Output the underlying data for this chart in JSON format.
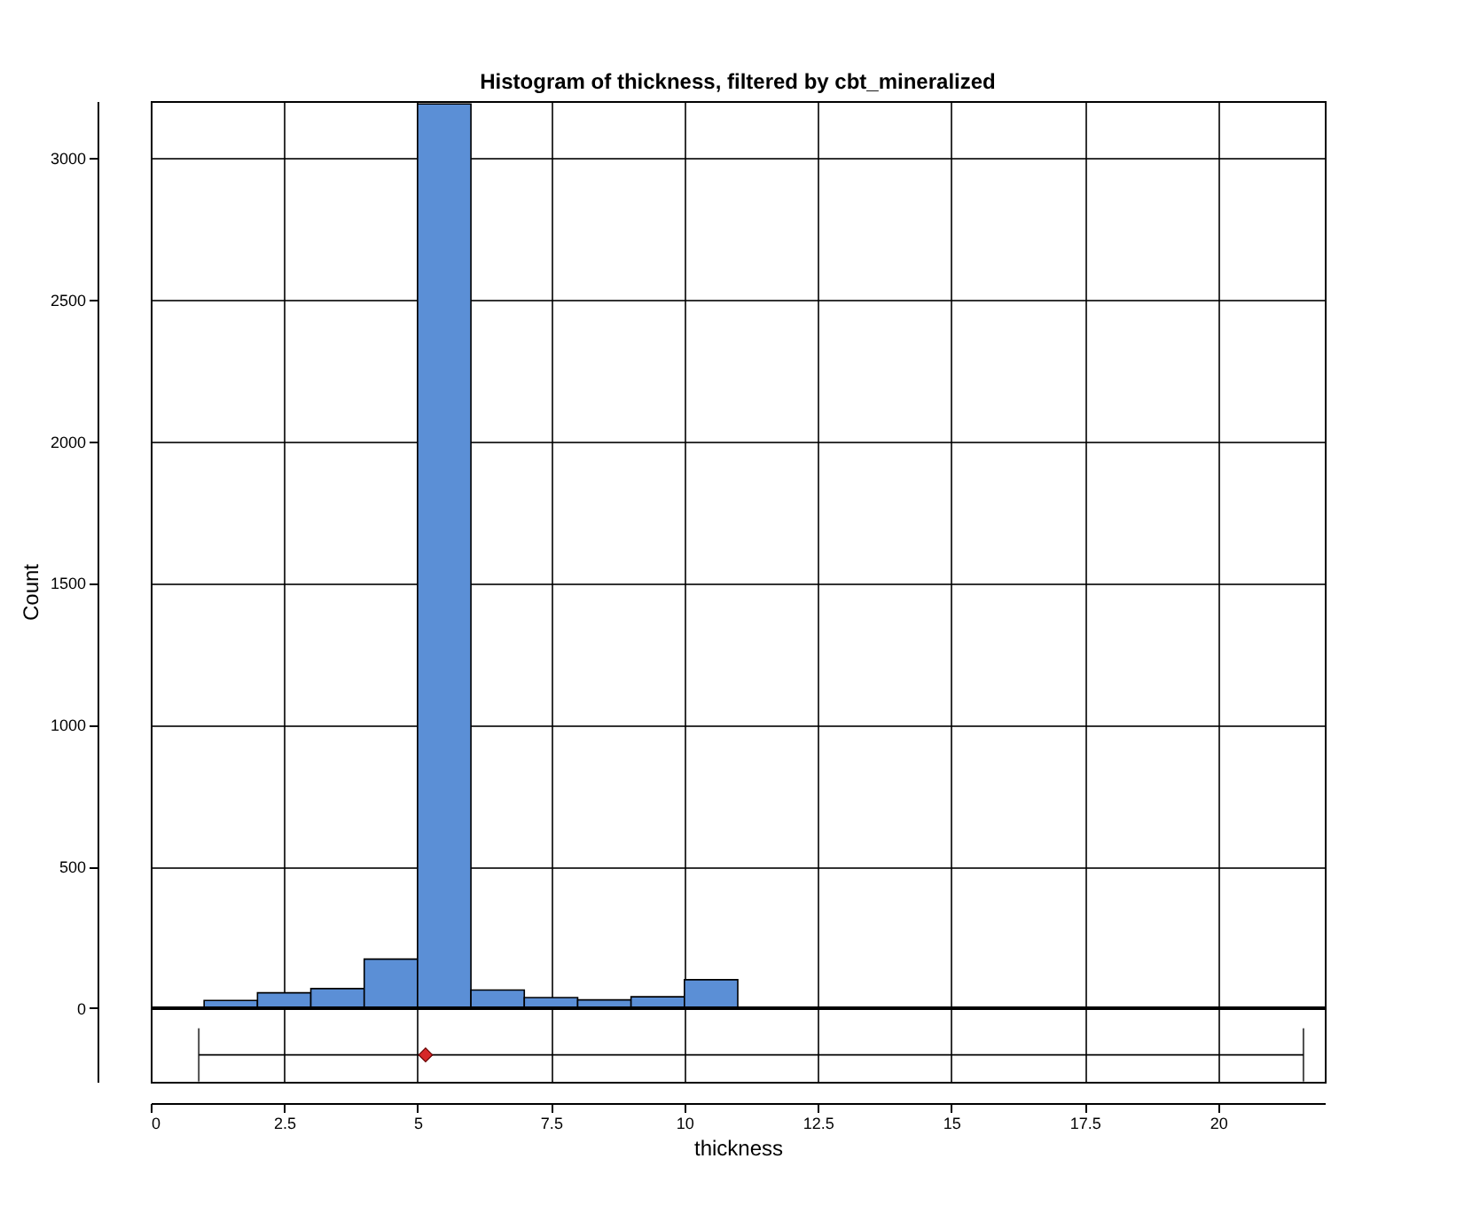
{
  "chart_data": {
    "type": "histogram",
    "title": "Histogram of thickness, filtered by cbt_mineralized",
    "xlabel": "thickness",
    "ylabel": "Count",
    "bins": [
      1,
      2,
      3,
      4,
      5,
      6,
      7,
      8,
      9,
      10,
      11,
      12,
      13,
      14,
      15,
      16,
      17,
      18,
      19,
      20,
      21,
      22
    ],
    "values": [
      27,
      54,
      69,
      173,
      3190,
      64,
      37,
      29,
      40,
      100,
      0,
      2,
      3,
      1,
      0,
      0,
      0,
      0,
      0,
      0,
      0
    ],
    "color": "#5b8fd6",
    "series": [
      {
        "type": "scatter",
        "x": [
          5.15
        ],
        "values": [
          -165
        ],
        "xerrors": [
          [
            0.9,
            21.6
          ]
        ],
        "color": "#d62728",
        "marker": "diamond"
      }
    ],
    "ref_lines": [
      {
        "axis": "y",
        "value": 0,
        "color": "#000000"
      }
    ],
    "xlim": [
      0,
      22
    ],
    "xticks": [
      0,
      2.5,
      5,
      7.5,
      10,
      12.5,
      15,
      17.5,
      20
    ],
    "ylim": [
      -260,
      3200
    ],
    "yticks": [
      0,
      500,
      1000,
      1500,
      2000,
      2500,
      3000
    ],
    "grid": true
  }
}
